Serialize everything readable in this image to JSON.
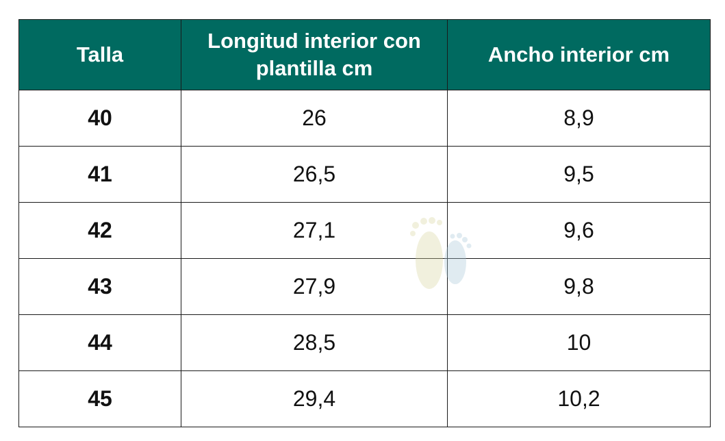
{
  "table": {
    "header": [
      "Talla",
      "Longitud interior con plantilla cm",
      "Ancho interior cm"
    ],
    "rows": [
      [
        "40",
        "26",
        "8,9"
      ],
      [
        "41",
        "26,5",
        "9,5"
      ],
      [
        "42",
        "27,1",
        "9,6"
      ],
      [
        "43",
        "27,9",
        "9,8"
      ],
      [
        "44",
        "28,5",
        "10"
      ],
      [
        "45",
        "29,4",
        "10,2"
      ]
    ]
  }
}
